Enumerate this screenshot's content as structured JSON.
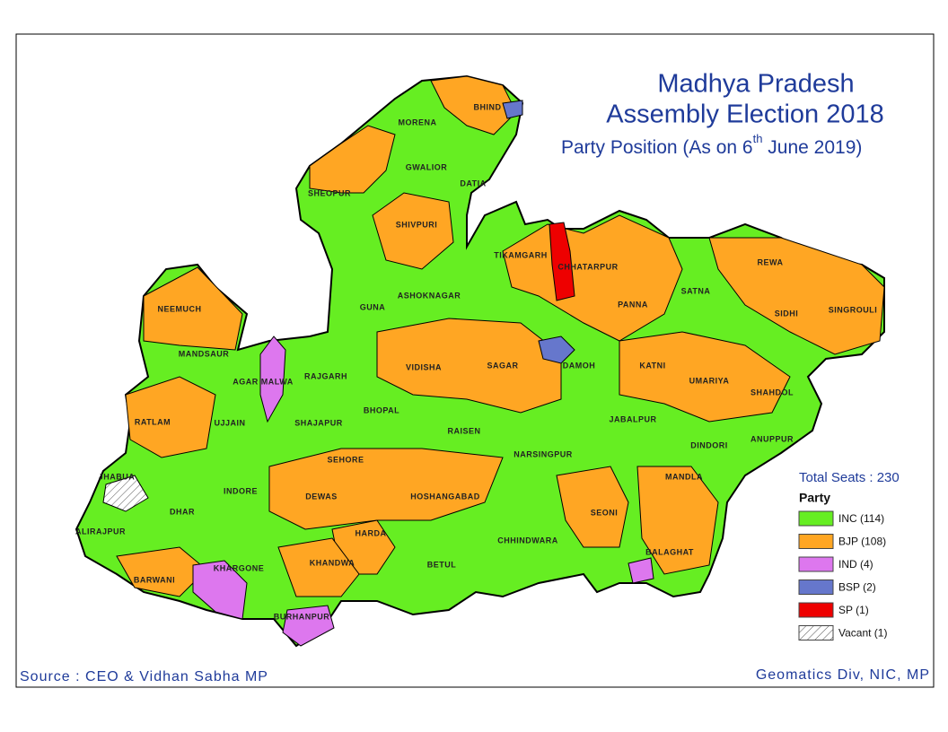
{
  "title_line1": "Madhya Pradesh",
  "title_line2": "Assembly Election 2018",
  "subtitle": {
    "before": "Party Position (As on 6",
    "sup": "th",
    "after": " June 2019)"
  },
  "source": "Source : CEO & Vidhan Sabha MP",
  "credit": "Geomatics Div, NIC, MP",
  "total_seats": "Total Seats : 230",
  "legend": {
    "title": "Party",
    "items": [
      {
        "label": "INC (114)",
        "color": "#66ee22"
      },
      {
        "label": "BJP (108)",
        "color": "#ffa623"
      },
      {
        "label": "IND (4)",
        "color": "#dd77ee"
      },
      {
        "label": "BSP (2)",
        "color": "#6677cc"
      },
      {
        "label": "SP  (1)",
        "color": "#ee0000"
      },
      {
        "label": "Vacant (1)",
        "color": "hatch"
      }
    ]
  },
  "districts": [
    "BHIND",
    "MORENA",
    "GWALIOR",
    "DATIA",
    "SHEOPUR",
    "SHIVPURI",
    "ASHOKNAGAR",
    "GUNA",
    "TIKAMGARH",
    "CHHATARPUR",
    "PANNA",
    "SATNA",
    "REWA",
    "SIDHI",
    "SINGROULI",
    "NEEMUCH",
    "MANDSAUR",
    "RATLAM",
    "AGAR MALWA",
    "RAJGARH",
    "VIDISHA",
    "SAGAR",
    "DAMOH",
    "KATNI",
    "UMARIYA",
    "SHAHDOL",
    "UJJAIN",
    "SHAJAPUR",
    "BHOPAL",
    "RAISEN",
    "JABALPUR",
    "DINDORI",
    "ANUPPUR",
    "JHABUA",
    "SEHORE",
    "NARSINGPUR",
    "INDORE",
    "DEWAS",
    "HOSHANGABAD",
    "MANDLA",
    "DHAR",
    "SEONI",
    "ALIRAJPUR",
    "HARDA",
    "CHHINDWARA",
    "KHARGONE",
    "KHANDWA",
    "BETUL",
    "BALAGHAT",
    "BARWANI",
    "BURHANPUR"
  ]
}
